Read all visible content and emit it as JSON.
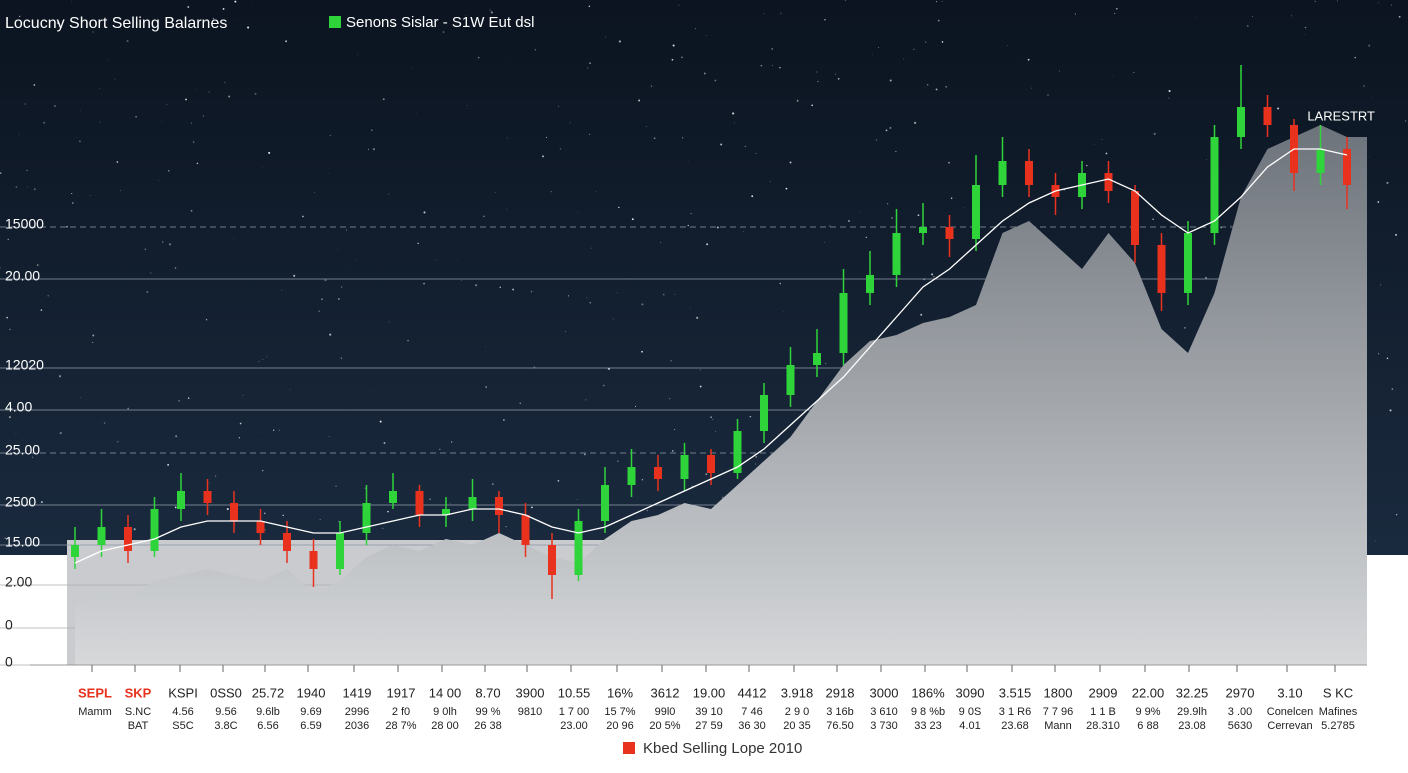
{
  "chart_data": {
    "type": "candlestick",
    "title": "Locucny Short Selling Balarnes",
    "annotation": "LARESTRT",
    "ylim": [
      0,
      100
    ],
    "y_labels": [
      "15000",
      "20.00",
      "12020",
      "4.00",
      "25.00",
      "2500",
      "15.00",
      "2.00",
      "0",
      "0"
    ],
    "x_label_rows": [
      [
        "SEPL",
        "SKP",
        "KSPI",
        "0SS0",
        "25.72",
        "1940",
        "1419",
        "1917",
        "14 00",
        "8.70",
        "3900",
        "10.55",
        "16%",
        "3612",
        "19.00",
        "4412",
        "3.918",
        "2918",
        "3000",
        "186%",
        "3090",
        "3.515",
        "1800",
        "2909",
        "22.00",
        "32.25",
        "2970",
        "3.10",
        "S KC"
      ],
      [
        "Mamm",
        "S.NC",
        "4.56",
        "9.56",
        "9.6lb",
        "9.69",
        "2996",
        "2 f0",
        "9 0lh",
        "99 %",
        "9810",
        "1 7 00",
        "15 7%",
        "99l0",
        "39 10",
        "7 46",
        "2 9 0",
        "3 16b",
        "3 610",
        "9 8 %b",
        "9 0S",
        "3 1 R6",
        "7 7 96",
        "1 1 B",
        "9 9%",
        "29.9lh",
        "3 .00",
        "Conelcen",
        "Mafines"
      ],
      [
        null,
        "BAT",
        "S5C",
        "3.8C",
        "6.56",
        "6.59",
        "2036",
        "28 7%",
        "28 00",
        "26 38",
        null,
        "23.00",
        "20 96",
        "20 5%",
        "27 59",
        "36 30",
        "20 35",
        "76.50",
        "3 730",
        "33 23",
        "4.01",
        "23.68",
        "Mann",
        "28.310",
        "6 88",
        "23.08",
        "5630",
        "Cerrevan",
        "5.2785"
      ]
    ],
    "series": [
      {
        "name": "Senons Sislar - S1W Eut dsl",
        "color": "#2fd43a",
        "down_color": "#e8321e",
        "open": [
          18,
          20,
          23,
          19,
          26,
          29,
          27,
          24,
          22,
          19,
          16,
          22,
          27,
          29,
          25,
          26,
          28,
          25,
          20,
          15,
          24,
          30,
          33,
          31,
          35,
          32,
          39,
          45,
          50,
          52,
          62,
          65,
          72,
          73,
          71,
          80,
          84,
          80,
          78,
          82,
          79,
          70,
          62,
          72,
          88,
          93,
          90,
          82,
          86
        ],
        "high": [
          23,
          26,
          25,
          28,
          32,
          31,
          29,
          26,
          24,
          21,
          24,
          30,
          32,
          30,
          28,
          31,
          29,
          27,
          22,
          26,
          33,
          36,
          35,
          37,
          36,
          41,
          47,
          53,
          56,
          66,
          69,
          76,
          77,
          75,
          85,
          88,
          86,
          82,
          84,
          84,
          80,
          72,
          74,
          90,
          100,
          95,
          91,
          90,
          88
        ],
        "low": [
          16,
          18,
          17,
          18,
          24,
          25,
          22,
          20,
          17,
          13,
          15,
          20,
          26,
          23,
          23,
          24,
          22,
          18,
          11,
          14,
          22,
          28,
          29,
          29,
          30,
          31,
          37,
          43,
          48,
          50,
          60,
          63,
          70,
          68,
          69,
          78,
          78,
          75,
          76,
          77,
          67,
          59,
          60,
          70,
          86,
          88,
          79,
          80,
          76
        ],
        "close": [
          20,
          23,
          19,
          26,
          29,
          27,
          24,
          22,
          19,
          16,
          22,
          27,
          29,
          25,
          26,
          28,
          25,
          20,
          15,
          24,
          30,
          33,
          31,
          35,
          32,
          39,
          45,
          50,
          52,
          62,
          65,
          72,
          73,
          71,
          80,
          84,
          80,
          78,
          82,
          79,
          70,
          62,
          72,
          88,
          93,
          90,
          82,
          86,
          80
        ],
        "trend": [
          17,
          19,
          20,
          21,
          23,
          24,
          24,
          24,
          23,
          22,
          22,
          23,
          24,
          25,
          25,
          26,
          26,
          25,
          23,
          22,
          23,
          25,
          27,
          29,
          31,
          33,
          36,
          40,
          44,
          48,
          53,
          58,
          63,
          66,
          70,
          74,
          77,
          79,
          80,
          81,
          79,
          75,
          72,
          74,
          78,
          83,
          86,
          86,
          85
        ],
        "trend_color": "#ffffff"
      },
      {
        "name": "Kbed Selling Lope 2010",
        "color": "#e8321e",
        "fill": "#8a8f95",
        "values": [
          10,
          12,
          11,
          14,
          15,
          16,
          15,
          14,
          16,
          12,
          14,
          18,
          20,
          19,
          21,
          20,
          22,
          20,
          18,
          17,
          21,
          24,
          25,
          27,
          26,
          30,
          34,
          38,
          44,
          50,
          54,
          55,
          57,
          58,
          60,
          72,
          74,
          70,
          66,
          72,
          67,
          56,
          52,
          62,
          78,
          86,
          88,
          90,
          88
        ]
      }
    ]
  }
}
